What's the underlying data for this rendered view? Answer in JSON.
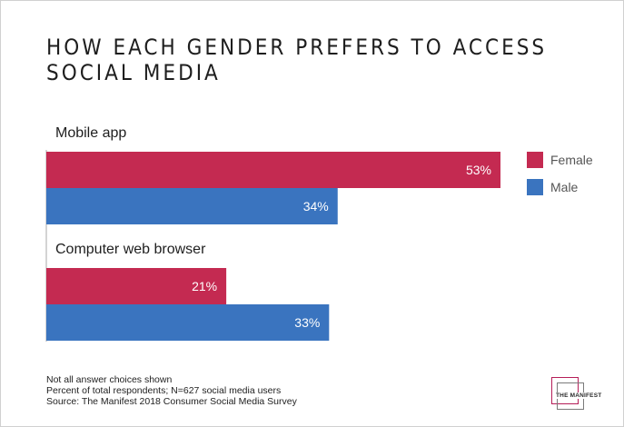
{
  "title_lines": [
    "How each gender prefers to access",
    "social media"
  ],
  "chart_data": {
    "type": "bar",
    "orientation": "horizontal",
    "title": "How each gender prefers to access social media",
    "categories": [
      "Mobile app",
      "Computer web browser"
    ],
    "series": [
      {
        "name": "Female",
        "values": [
          53,
          21
        ],
        "color": "#c42a51"
      },
      {
        "name": "Male",
        "values": [
          34,
          33
        ],
        "color": "#3a74bf"
      }
    ],
    "value_suffix": "%",
    "xlim": [
      0,
      53
    ],
    "grid": false,
    "legend": "right"
  },
  "notes": [
    "Not all answer choices shown",
    "Percent of total respondents; N=627 social media users",
    "Source: The Manifest 2018 Consumer Social Media Survey"
  ],
  "logo_text": "THE MANIFEST",
  "colors": {
    "female": "#c42a51",
    "male": "#3a74bf",
    "axis": "#aaaaaa"
  }
}
